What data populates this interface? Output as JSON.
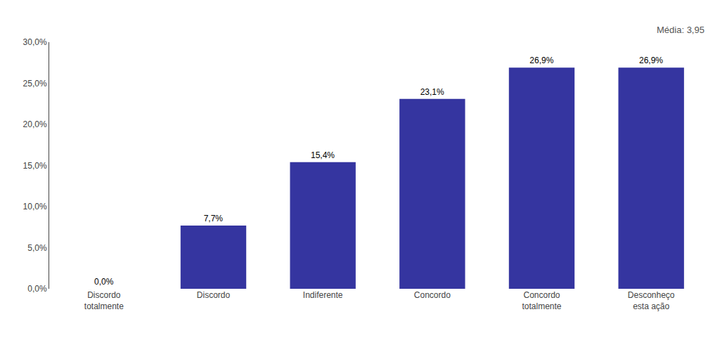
{
  "chart_data": {
    "type": "bar",
    "categories": [
      "Discordo\ntotalmente",
      "Discordo",
      "Indiferente",
      "Concordo",
      "Concordo\ntotalmente",
      "Desconheço\nesta ação"
    ],
    "values": [
      0.0,
      7.7,
      15.4,
      23.1,
      26.9,
      26.9
    ],
    "value_labels": [
      "0,0%",
      "7,7%",
      "15,4%",
      "23,1%",
      "26,9%",
      "26,9%"
    ],
    "data_labels": true,
    "color": "#3535a0",
    "ylim": [
      0,
      30.0
    ],
    "yticks": [
      {
        "value": 0.0,
        "label": "0,0%"
      },
      {
        "value": 5.0,
        "label": "5,0%"
      },
      {
        "value": 10.0,
        "label": "10,0%"
      },
      {
        "value": 15.0,
        "label": "15,0%"
      },
      {
        "value": 20.0,
        "label": "20,0%"
      },
      {
        "value": 25.0,
        "label": "25,0%"
      },
      {
        "value": 30.0,
        "label": "30,0%"
      }
    ],
    "annotations": [
      "Média: 3,95"
    ],
    "grid": false
  }
}
